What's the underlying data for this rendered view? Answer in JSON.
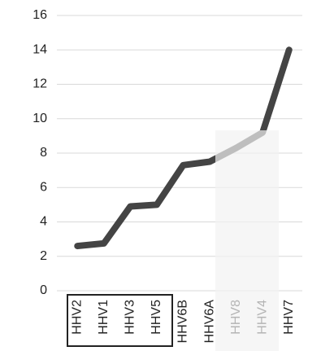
{
  "chart_data": {
    "type": "line",
    "categories": [
      "HHV2",
      "HHV1",
      "HHV3",
      "HHV5",
      "HHV6B",
      "HHV6A",
      "HHV8",
      "HHV4",
      "HHV7"
    ],
    "values": [
      2.6,
      2.75,
      4.9,
      5.0,
      7.3,
      7.5,
      8.3,
      9.2,
      14.0
    ],
    "color": "#444444",
    "ylim": [
      0,
      16
    ],
    "yticks": [
      0,
      2,
      4,
      6,
      8,
      10,
      12,
      14,
      16
    ],
    "grid": true
  }
}
